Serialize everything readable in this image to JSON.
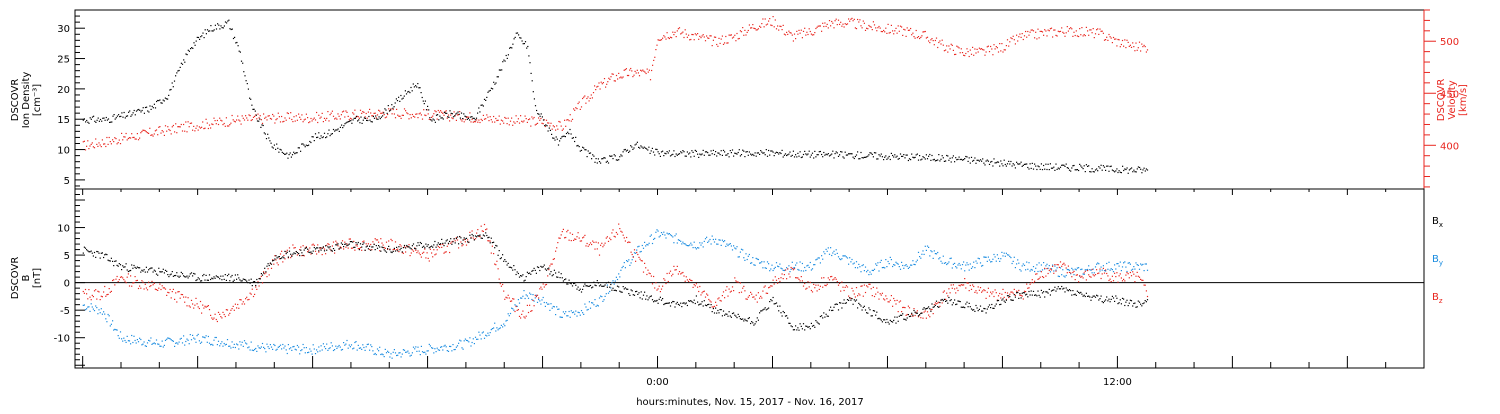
{
  "colors": {
    "black": "#000000",
    "red": "#e8261f",
    "blue": "#1a8ce0"
  },
  "xlabel": "hours:minutes, Nov. 15, 2017 - Nov. 16, 2017",
  "chart_data": [
    {
      "type": "scatter",
      "panel": "top",
      "xlim_hours": [
        -15.2,
        20.0
      ],
      "x_tick_labels": [
        {
          "hour": 0,
          "label": "0:00"
        },
        {
          "hour": 12,
          "label": "12:00"
        }
      ],
      "left_axis": {
        "label_lines": [
          "DSCOVR",
          "Ion Density",
          "[cm⁻³]"
        ],
        "ylim": [
          3.5,
          33
        ],
        "ticks": [
          5,
          10,
          15,
          20,
          25,
          30
        ]
      },
      "right_axis": {
        "label_lines": [
          "DSCOVR",
          "Velocity",
          "[km/s]"
        ],
        "ylim": [
          358,
          530
        ],
        "ticks": [
          400,
          450,
          500
        ]
      },
      "series": [
        {
          "color": "black",
          "axis": "left",
          "points": [
            [
              -15.0,
              15
            ],
            [
              -14.4,
              15
            ],
            [
              -13.7,
              16
            ],
            [
              -13.2,
              17
            ],
            [
              -12.8,
              19
            ],
            [
              -12.2,
              27
            ],
            [
              -11.7,
              30
            ],
            [
              -11.2,
              31
            ],
            [
              -10.9,
              26
            ],
            [
              -10.6,
              17
            ],
            [
              -10.1,
              11
            ],
            [
              -9.6,
              9
            ],
            [
              -9.0,
              12
            ],
            [
              -8.5,
              13
            ],
            [
              -7.9,
              15
            ],
            [
              -7.4,
              15
            ],
            [
              -6.8,
              18
            ],
            [
              -6.3,
              21
            ],
            [
              -5.9,
              15
            ],
            [
              -5.4,
              16
            ],
            [
              -4.8,
              15
            ],
            [
              -4.2,
              22
            ],
            [
              -3.7,
              29
            ],
            [
              -3.4,
              27
            ],
            [
              -3.2,
              17
            ],
            [
              -2.9,
              14
            ],
            [
              -2.6,
              11
            ],
            [
              -2.3,
              13
            ],
            [
              -2.0,
              10
            ],
            [
              -1.5,
              8
            ],
            [
              -1.0,
              9
            ],
            [
              -0.6,
              11
            ],
            [
              -0.3,
              10
            ],
            [
              0.0,
              9.5
            ],
            [
              1.0,
              9.4
            ],
            [
              2.0,
              9.5
            ],
            [
              3.0,
              9.5
            ],
            [
              4.0,
              9.3
            ],
            [
              5.0,
              9.2
            ],
            [
              6.0,
              9
            ],
            [
              7.0,
              8.8
            ],
            [
              8.0,
              8.5
            ],
            [
              9.0,
              7.8
            ],
            [
              10.0,
              7.3
            ],
            [
              11.0,
              7.1
            ],
            [
              12.0,
              6.8
            ],
            [
              12.8,
              6.7
            ]
          ]
        },
        {
          "color": "red",
          "axis": "right",
          "points": [
            [
              -15.0,
              400
            ],
            [
              -14.0,
              407
            ],
            [
              -13.0,
              414
            ],
            [
              -12.0,
              420
            ],
            [
              -11.0,
              425
            ],
            [
              -10.0,
              427
            ],
            [
              -9.0,
              427
            ],
            [
              -8.0,
              430
            ],
            [
              -7.0,
              432
            ],
            [
              -6.0,
              430
            ],
            [
              -5.0,
              428
            ],
            [
              -4.0,
              425
            ],
            [
              -3.0,
              423
            ],
            [
              -2.5,
              418
            ],
            [
              -2.0,
              440
            ],
            [
              -1.6,
              455
            ],
            [
              -1.2,
              465
            ],
            [
              -0.8,
              470
            ],
            [
              -0.4,
              470
            ],
            [
              -0.2,
              468
            ],
            [
              0.0,
              505
            ],
            [
              0.5,
              510
            ],
            [
              1.0,
              505
            ],
            [
              1.5,
              500
            ],
            [
              2.0,
              505
            ],
            [
              2.5,
              515
            ],
            [
              3.0,
              520
            ],
            [
              3.5,
              505
            ],
            [
              4.0,
              510
            ],
            [
              4.5,
              518
            ],
            [
              5.0,
              518
            ],
            [
              5.5,
              515
            ],
            [
              6.0,
              512
            ],
            [
              6.5,
              510
            ],
            [
              7.0,
              505
            ],
            [
              7.5,
              495
            ],
            [
              8.0,
              490
            ],
            [
              8.5,
              490
            ],
            [
              9.0,
              495
            ],
            [
              9.5,
              505
            ],
            [
              10.0,
              508
            ],
            [
              10.5,
              510
            ],
            [
              11.0,
              510
            ],
            [
              11.5,
              508
            ],
            [
              12.0,
              500
            ],
            [
              12.5,
              495
            ],
            [
              12.8,
              495
            ]
          ]
        }
      ]
    },
    {
      "type": "scatter",
      "panel": "bottom",
      "xlim_hours": [
        -15.2,
        20.0
      ],
      "left_axis": {
        "label_lines": [
          "DSCOVR",
          "B",
          "[nT]"
        ],
        "ylim": [
          -15.5,
          17
        ],
        "ticks": [
          -10,
          -5,
          0,
          5,
          10
        ]
      },
      "zero_line": true,
      "legend_labels": [
        {
          "main": "B",
          "sub": "x",
          "color": "black"
        },
        {
          "main": "B",
          "sub": "y",
          "color": "blue"
        },
        {
          "main": "B",
          "sub": "z",
          "color": "red"
        }
      ],
      "series": [
        {
          "color": "black",
          "points": [
            [
              -15.0,
              6
            ],
            [
              -14.5,
              5
            ],
            [
              -14.0,
              3
            ],
            [
              -13.0,
              2
            ],
            [
              -12.0,
              1
            ],
            [
              -11.0,
              1
            ],
            [
              -10.5,
              0
            ],
            [
              -10.0,
              5
            ],
            [
              -9.0,
              6
            ],
            [
              -8.0,
              7
            ],
            [
              -7.0,
              6
            ],
            [
              -6.0,
              7
            ],
            [
              -5.0,
              8
            ],
            [
              -4.5,
              9
            ],
            [
              -4.0,
              4
            ],
            [
              -3.5,
              1
            ],
            [
              -3.0,
              3
            ],
            [
              -2.5,
              1
            ],
            [
              -2.0,
              -1
            ],
            [
              -1.5,
              0
            ],
            [
              -1.0,
              -1
            ],
            [
              -0.5,
              -2
            ],
            [
              0.0,
              -3
            ],
            [
              0.5,
              -4
            ],
            [
              1.0,
              -3
            ],
            [
              1.5,
              -5
            ],
            [
              2.0,
              -6
            ],
            [
              2.5,
              -7
            ],
            [
              3.0,
              -3
            ],
            [
              3.5,
              -8
            ],
            [
              4.0,
              -8
            ],
            [
              4.5,
              -5
            ],
            [
              5.0,
              -3
            ],
            [
              5.5,
              -5
            ],
            [
              6.0,
              -7
            ],
            [
              6.5,
              -6
            ],
            [
              7.0,
              -5
            ],
            [
              7.5,
              -3
            ],
            [
              8.0,
              -4
            ],
            [
              8.5,
              -5
            ],
            [
              9.0,
              -3
            ],
            [
              9.5,
              -2
            ],
            [
              10.0,
              -2
            ],
            [
              10.5,
              -1
            ],
            [
              11.0,
              -2
            ],
            [
              11.5,
              -3
            ],
            [
              12.0,
              -3
            ],
            [
              12.5,
              -4
            ],
            [
              12.8,
              -3
            ]
          ]
        },
        {
          "color": "blue",
          "points": [
            [
              -15.0,
              -4
            ],
            [
              -14.5,
              -5
            ],
            [
              -14.0,
              -10
            ],
            [
              -13.0,
              -11
            ],
            [
              -12.0,
              -10
            ],
            [
              -11.0,
              -11
            ],
            [
              -10.0,
              -12
            ],
            [
              -9.0,
              -12
            ],
            [
              -8.0,
              -11
            ],
            [
              -7.0,
              -13
            ],
            [
              -6.0,
              -12
            ],
            [
              -5.0,
              -11
            ],
            [
              -4.5,
              -9
            ],
            [
              -4.0,
              -7
            ],
            [
              -3.5,
              -2
            ],
            [
              -3.0,
              -3
            ],
            [
              -2.5,
              -6
            ],
            [
              -2.0,
              -5
            ],
            [
              -1.5,
              -3
            ],
            [
              -1.0,
              2
            ],
            [
              -0.5,
              6
            ],
            [
              0.0,
              9
            ],
            [
              0.5,
              8
            ],
            [
              1.0,
              7
            ],
            [
              1.5,
              8
            ],
            [
              2.0,
              6
            ],
            [
              2.5,
              4
            ],
            [
              3.0,
              3
            ],
            [
              3.5,
              3
            ],
            [
              4.0,
              3
            ],
            [
              4.5,
              6
            ],
            [
              5.0,
              4
            ],
            [
              5.5,
              2
            ],
            [
              6.0,
              4
            ],
            [
              6.5,
              3
            ],
            [
              7.0,
              6
            ],
            [
              7.5,
              4
            ],
            [
              8.0,
              3
            ],
            [
              8.5,
              4
            ],
            [
              9.0,
              5
            ],
            [
              9.5,
              3
            ],
            [
              10.0,
              3
            ],
            [
              10.5,
              2
            ],
            [
              11.0,
              2
            ],
            [
              11.5,
              3
            ],
            [
              12.0,
              3
            ],
            [
              12.5,
              3
            ],
            [
              12.8,
              3
            ]
          ]
        },
        {
          "color": "red",
          "points": [
            [
              -15.0,
              -2
            ],
            [
              -14.5,
              -2
            ],
            [
              -14.0,
              1
            ],
            [
              -13.0,
              -1
            ],
            [
              -12.0,
              -4
            ],
            [
              -11.5,
              -6
            ],
            [
              -11.0,
              -4
            ],
            [
              -10.5,
              -1
            ],
            [
              -10.0,
              4
            ],
            [
              -9.5,
              6
            ],
            [
              -9.0,
              6
            ],
            [
              -8.0,
              7
            ],
            [
              -7.0,
              7
            ],
            [
              -6.0,
              5
            ],
            [
              -5.0,
              8
            ],
            [
              -4.5,
              10
            ],
            [
              -4.0,
              -2
            ],
            [
              -3.5,
              -6
            ],
            [
              -3.0,
              -1
            ],
            [
              -2.5,
              9
            ],
            [
              -2.0,
              8
            ],
            [
              -1.5,
              6
            ],
            [
              -1.0,
              10
            ],
            [
              -0.5,
              4
            ],
            [
              0.0,
              -1
            ],
            [
              0.5,
              3
            ],
            [
              1.0,
              -1
            ],
            [
              1.5,
              -4
            ],
            [
              2.0,
              0
            ],
            [
              2.5,
              -3
            ],
            [
              3.0,
              0
            ],
            [
              3.5,
              2
            ],
            [
              4.0,
              -1
            ],
            [
              4.5,
              1
            ],
            [
              5.0,
              -2
            ],
            [
              5.5,
              -1
            ],
            [
              6.0,
              -3
            ],
            [
              6.5,
              -5
            ],
            [
              7.0,
              -6
            ],
            [
              7.5,
              -2
            ],
            [
              8.0,
              0
            ],
            [
              8.5,
              -2
            ],
            [
              9.0,
              -2
            ],
            [
              9.5,
              -2
            ],
            [
              10.0,
              2
            ],
            [
              10.5,
              3
            ],
            [
              11.0,
              1
            ],
            [
              11.5,
              2
            ],
            [
              12.0,
              1
            ],
            [
              12.5,
              1
            ],
            [
              12.8,
              -2
            ]
          ]
        }
      ]
    }
  ]
}
